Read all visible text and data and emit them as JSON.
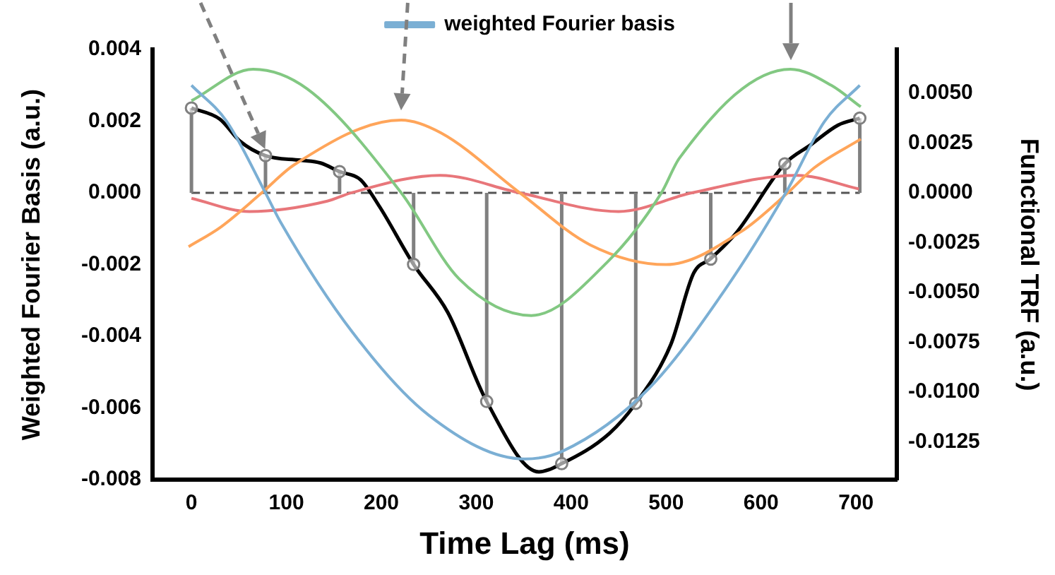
{
  "chart_data": {
    "type": "line",
    "xlabel": "Time Lag (ms)",
    "ylabel": "Weighted Fourier Basis (a.u.)",
    "y2label": "Functional TRF (a.u.)",
    "xlim": [
      -41,
      743
    ],
    "xticks": [
      0,
      100,
      200,
      300,
      400,
      500,
      600,
      700
    ],
    "ylim": [
      -0.008,
      0.004
    ],
    "yticks": [
      {
        "value": -0.008,
        "label": "-0.008"
      },
      {
        "value": -0.006,
        "label": "-0.006"
      },
      {
        "value": -0.004,
        "label": "-0.004"
      },
      {
        "value": -0.002,
        "label": "-0.002"
      },
      {
        "value": 0,
        "label": "0.000"
      },
      {
        "value": 0.002,
        "label": "0.002"
      },
      {
        "value": 0.004,
        "label": "0.004"
      }
    ],
    "y2lim": [
      -0.0144,
      0.0072
    ],
    "y2ticks": [
      {
        "value": -0.0125,
        "label": "-0.0125"
      },
      {
        "value": -0.01,
        "label": "-0.0100"
      },
      {
        "value": -0.0075,
        "label": "-0.0075"
      },
      {
        "value": -0.005,
        "label": "-0.0050"
      },
      {
        "value": -0.0025,
        "label": "-0.0025"
      },
      {
        "value": 0,
        "label": "0.0000"
      },
      {
        "value": 0.0025,
        "label": "0.0025"
      },
      {
        "value": 0.005,
        "label": "0.0050"
      }
    ],
    "grid": false,
    "legend": "top",
    "marker": "none",
    "line_style": "solid",
    "ref_lines": [
      {
        "axis": "y",
        "value": 0,
        "color": "#555555",
        "line_style": "dashed"
      }
    ],
    "series": [
      {
        "name": "weighted Fourier basis",
        "color": "#7bafd4",
        "x": [
          0,
          37,
          78,
          94,
          170,
          250,
          351,
          391,
          482,
          562,
          626,
          667,
          704
        ],
        "values": [
          0.003,
          0.002,
          0,
          -0.00082,
          -0.0039,
          -0.0062,
          -0.00742,
          -0.0072,
          -0.00545,
          -0.0027,
          0,
          0.002,
          0.003
        ]
      },
      {
        "color": "#82c882",
        "x": [
          0,
          65,
          122,
          221,
          282,
          358,
          438,
          495,
          514,
          631,
          674,
          705
        ],
        "values": [
          0.00257,
          0.00345,
          0.0029,
          0,
          -0.0024,
          -0.00342,
          -0.00193,
          0,
          0.00097,
          0.00345,
          0.003,
          0.0024
        ]
      },
      {
        "color": "#ffa55a",
        "x": [
          -3,
          31,
          74,
          108,
          221,
          263,
          346,
          420,
          500,
          579,
          628,
          656,
          705
        ],
        "values": [
          -0.0015,
          -0.00095,
          0,
          0.00078,
          0.00203,
          0.00167,
          0,
          -0.00145,
          -0.002,
          -0.00108,
          0,
          0.0007,
          0.0015
        ]
      },
      {
        "color": "#e8767a",
        "x": [
          0,
          61,
          143,
          168,
          262,
          346,
          450,
          527,
          638,
          703
        ],
        "values": [
          -0.00015,
          -0.00052,
          -0.00023,
          0,
          0.00049,
          0,
          -0.00052,
          0,
          0.00049,
          0.00011
        ]
      },
      {
        "type": "lollipop",
        "axis": "y2",
        "color": "#808080",
        "marker": "circle",
        "x": [
          0,
          78,
          156,
          234,
          311,
          390,
          468,
          547,
          625,
          704
        ],
        "values": [
          0.00426,
          0.00187,
          0.00107,
          -0.00359,
          -0.01047,
          -0.01359,
          -0.01056,
          -0.00332,
          0.00146,
          0.00375
        ]
      },
      {
        "axis": "y2",
        "color": "#000000",
        "x": [
          0,
          30,
          51,
          78,
          115,
          136,
          156,
          178,
          198,
          234,
          270,
          311,
          366,
          390,
          440,
          468,
          505,
          529,
          547,
          574,
          625,
          652,
          681,
          704
        ],
        "values": [
          0.00426,
          0.0037,
          0.0026,
          0.00187,
          0.00164,
          0.0015,
          0.00107,
          0.00066,
          -0.00068,
          -0.00359,
          -0.006,
          -0.01047,
          -0.014,
          -0.01359,
          -0.01208,
          -0.01056,
          -0.0076,
          -0.00403,
          -0.0033,
          -0.002,
          0.00146,
          0.0024,
          0.0034,
          0.00375
        ]
      }
    ]
  }
}
